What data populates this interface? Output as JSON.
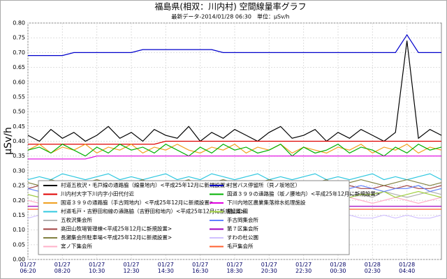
{
  "chart_data": {
    "type": "line",
    "title": "福島県(相双：川内村) 空間線量率グラフ",
    "subtitle": "最新データ-2014/01/28 06:30　単位：μSv/h",
    "y_label": "μSv/h",
    "categories": [
      "01/27\n06:20",
      null,
      null,
      "01/27\n08:20",
      null,
      null,
      "01/27\n10:30",
      null,
      null,
      "01/27\n12:30",
      null,
      null,
      "01/27\n14:30",
      null,
      null,
      "01/27\n16:30",
      null,
      null,
      "01/27\n18:30",
      null,
      null,
      "01/27\n20:30",
      null,
      null,
      "01/27\n22:30",
      null,
      null,
      "01/28\n00:30",
      null,
      null,
      "01/28\n02:30",
      null,
      null,
      "01/28\n04:40",
      null,
      null,
      null
    ],
    "ylim": [
      0,
      0.8
    ],
    "yticks": [
      {
        "value": 0,
        "label": "0.00"
      },
      0.05,
      {
        "value": 0.1,
        "label": "0.10"
      },
      0.15,
      {
        "value": 0.2,
        "label": "0.20"
      },
      0.25,
      {
        "value": 0.3,
        "label": "0.30"
      },
      0.35,
      {
        "value": 0.4,
        "label": "0.40"
      },
      0.45,
      {
        "value": 0.5,
        "label": "0.50"
      },
      0.55,
      {
        "value": 0.6,
        "label": "0.60"
      },
      0.65,
      {
        "value": 0.7,
        "label": "0.70"
      },
      0.75,
      {
        "value": 0.8,
        "label": "0.80"
      }
    ],
    "grid": true,
    "legend": "lower left",
    "series": [
      {
        "name": "村道五枚沢・毛戸線の通路脇（線量地内）<平成25年12月に新規設置>",
        "color": "#000000",
        "values": [
          0.42,
          0.4,
          0.44,
          0.41,
          0.43,
          0.4,
          0.42,
          0.45,
          0.41,
          0.43,
          0.4,
          0.44,
          0.42,
          0.41,
          0.45,
          0.4,
          0.43,
          0.41,
          0.44,
          0.42,
          0.4,
          0.43,
          0.45,
          0.41,
          0.42,
          0.44,
          0.4,
          0.43,
          0.41,
          0.44,
          0.42,
          0.4,
          0.43,
          0.74,
          0.41,
          0.44,
          0.42
        ]
      },
      {
        "name": "川内村大字下川内字小田代付近",
        "color": "#e00000",
        "values": [
          0.39,
          0.39,
          0.39,
          0.39,
          0.39,
          0.39,
          0.39,
          0.39,
          0.39,
          0.39,
          0.39,
          0.39,
          0.4,
          0.4,
          0.4,
          0.4,
          0.4,
          0.4,
          0.4,
          0.4,
          0.4,
          0.4,
          0.4,
          0.4,
          0.4,
          0.4,
          0.4,
          0.4,
          0.4,
          0.4,
          0.4,
          0.4,
          0.4,
          0.4,
          0.4,
          0.4,
          0.4
        ]
      },
      {
        "name": "国道３９９の通路脇（手古岡地内）<平成25年12月に新規設置>",
        "color": "#f0a020",
        "values": [
          0.37,
          0.39,
          0.36,
          0.38,
          0.37,
          0.39,
          0.36,
          0.38,
          0.37,
          0.39,
          0.36,
          0.38,
          0.37,
          0.39,
          0.37,
          0.36,
          0.38,
          0.37,
          0.39,
          0.36,
          0.38,
          0.37,
          0.39,
          0.36,
          0.38,
          0.37,
          0.36,
          0.38,
          0.37,
          0.39,
          0.36,
          0.38,
          0.37,
          0.39,
          0.36,
          0.38,
          0.37
        ]
      },
      {
        "name": "村道毛戸・吉野田和線の通路脇（吉野田和地内）<平成25年12月に新規設置>",
        "color": "#30c8e0",
        "values": [
          0.27,
          0.28,
          0.27,
          0.29,
          0.28,
          0.27,
          0.28,
          0.29,
          0.27,
          0.28,
          0.27,
          0.28,
          0.29,
          0.27,
          0.28,
          0.27,
          0.29,
          0.28,
          0.27,
          0.28,
          0.29,
          0.27,
          0.28,
          0.27,
          0.28,
          0.29,
          0.27,
          0.28,
          0.27,
          0.28,
          0.29,
          0.27,
          0.28,
          0.27,
          0.28,
          0.29,
          0.27
        ]
      },
      {
        "name": "五枚沢集会所",
        "color": "#b0b0b0",
        "values": [
          0.22,
          0.21,
          0.23,
          0.22,
          0.21,
          0.22,
          0.23,
          0.21,
          0.22,
          0.22,
          0.21,
          0.23,
          0.22,
          0.21,
          0.22,
          0.23,
          0.22,
          0.21,
          0.22,
          0.23,
          0.21,
          0.22,
          0.22,
          0.23,
          0.21,
          0.22,
          0.21,
          0.23,
          0.22,
          0.22,
          0.21,
          0.23,
          0.22,
          0.21,
          0.22,
          0.23,
          0.22
        ]
      },
      {
        "name": "高田山牧場管理棟<平成25年12月に新規設置>",
        "color": "#a04040",
        "values": [
          0.24,
          0.25,
          0.24,
          0.25,
          0.24,
          0.24,
          0.25,
          0.24,
          0.25,
          0.24,
          0.24,
          0.25,
          0.24,
          0.25,
          0.24,
          0.24,
          0.25,
          0.24,
          0.25,
          0.24,
          0.24,
          0.25,
          0.24,
          0.25,
          0.24,
          0.24,
          0.25,
          0.24,
          0.25,
          0.24,
          0.24,
          0.25,
          0.24,
          0.25,
          0.24,
          0.24,
          0.25
        ]
      },
      {
        "name": "長瀬集会所駐車場<平成25年12月に新規設置>",
        "color": "#808040",
        "values": [
          0.26,
          0.25,
          0.27,
          0.26,
          0.25,
          0.26,
          0.27,
          0.26,
          0.25,
          0.26,
          0.27,
          0.25,
          0.26,
          0.26,
          0.27,
          0.25,
          0.26,
          0.27,
          0.26,
          0.25,
          0.26,
          0.27,
          0.26,
          0.25,
          0.26,
          0.26,
          0.27,
          0.25,
          0.26,
          0.27,
          0.26,
          0.25,
          0.26,
          0.27,
          0.26,
          0.25,
          0.26
        ]
      },
      {
        "name": "宮ノ下集会所",
        "color": "#ffb0c8",
        "values": [
          0.2,
          0.19,
          0.21,
          0.2,
          0.19,
          0.2,
          0.21,
          0.19,
          0.2,
          0.2,
          0.21,
          0.19,
          0.2,
          0.21,
          0.2,
          0.19,
          0.2,
          0.21,
          0.19,
          0.2,
          0.2,
          0.21,
          0.19,
          0.2,
          0.21,
          0.2,
          0.19,
          0.2,
          0.21,
          0.2,
          0.19,
          0.2,
          0.21,
          0.2,
          0.19,
          0.2,
          0.21
        ]
      },
      {
        "name": "村営バス停留所（貝ノ坂地区）",
        "color": "#0000cc",
        "values": [
          0.69,
          0.69,
          0.69,
          0.69,
          0.7,
          0.7,
          0.7,
          0.7,
          0.7,
          0.7,
          0.71,
          0.71,
          0.71,
          0.71,
          0.71,
          0.71,
          0.71,
          0.7,
          0.7,
          0.7,
          0.7,
          0.7,
          0.7,
          0.7,
          0.7,
          0.7,
          0.7,
          0.7,
          0.7,
          0.7,
          0.7,
          0.7,
          0.7,
          0.76,
          0.7,
          0.7,
          0.7
        ]
      },
      {
        "name": "国道３９９の通路脇（坂ノ腰地内）<平成25年12月に新規設置>",
        "color": "#00b000",
        "values": [
          0.37,
          0.38,
          0.36,
          0.39,
          0.37,
          0.35,
          0.38,
          0.36,
          0.39,
          0.37,
          0.38,
          0.36,
          0.39,
          0.37,
          0.35,
          0.38,
          0.36,
          0.39,
          0.37,
          0.38,
          0.36,
          0.37,
          0.39,
          0.35,
          0.38,
          0.36,
          0.37,
          0.39,
          0.36,
          0.38,
          0.37,
          0.35,
          0.38,
          0.36,
          0.39,
          0.37,
          0.38
        ]
      },
      {
        "name": "下川内地区農業集落排水処理施設",
        "color": "#e000e0",
        "values": [
          0.34,
          0.34,
          0.34,
          0.34,
          0.34,
          0.34,
          0.35,
          0.35,
          0.35,
          0.35,
          0.35,
          0.35,
          0.35,
          0.35,
          0.35,
          0.35,
          0.35,
          0.35,
          0.35,
          0.35,
          0.35,
          0.35,
          0.35,
          0.35,
          0.35,
          0.35,
          0.35,
          0.35,
          0.35,
          0.35,
          0.35,
          0.35,
          0.35,
          0.35,
          0.35,
          0.35,
          0.35
        ]
      },
      {
        "name": "鍋山公園",
        "color": "#a0d040",
        "values": [
          0.22,
          0.21,
          0.23,
          0.22,
          0.21,
          0.23,
          0.22,
          0.21,
          0.22,
          0.23,
          0.21,
          0.22,
          0.23,
          0.22,
          0.21,
          0.22,
          0.23,
          0.21,
          0.22,
          0.22,
          0.23,
          0.21,
          0.22,
          0.23,
          0.22,
          0.21,
          0.22,
          0.23,
          0.21,
          0.22,
          0.22,
          0.23,
          0.21,
          0.22,
          0.23,
          0.22,
          0.21
        ]
      },
      {
        "name": "手古岡集会所",
        "color": "#6080ff",
        "values": [
          0.24,
          0.23,
          0.24,
          0.25,
          0.24,
          0.23,
          0.24,
          0.24,
          0.25,
          0.23,
          0.24,
          0.24,
          0.25,
          0.24,
          0.23,
          0.24,
          0.25,
          0.24,
          0.23,
          0.24,
          0.24,
          0.25,
          0.23,
          0.24,
          0.24,
          0.25,
          0.24,
          0.23,
          0.24,
          0.25,
          0.24,
          0.23,
          0.24,
          0.24,
          0.25,
          0.23,
          0.24
        ]
      },
      {
        "name": "第７区集会所",
        "color": "#a000c0",
        "values": [
          0.18,
          0.18,
          0.18,
          0.18,
          0.18,
          0.18,
          0.18,
          0.18,
          0.18,
          0.18,
          0.18,
          0.18,
          0.18,
          0.18,
          0.18,
          0.18,
          0.18,
          0.18,
          0.18,
          0.18,
          0.18,
          0.18,
          0.18,
          0.18,
          0.18,
          0.18,
          0.18,
          0.18,
          0.18,
          0.18,
          0.18,
          0.18,
          0.18,
          0.18,
          0.18,
          0.18,
          0.18
        ]
      },
      {
        "name": "すわの杜公園",
        "color": "#d0c0ff",
        "values": [
          0.14,
          0.15,
          0.14,
          0.15,
          0.14,
          0.14,
          0.15,
          0.14,
          0.15,
          0.14,
          0.14,
          0.15,
          0.14,
          0.15,
          0.14,
          0.14,
          0.15,
          0.14,
          0.15,
          0.14,
          0.14,
          0.15,
          0.14,
          0.15,
          0.14,
          0.14,
          0.15,
          0.14,
          0.15,
          0.14,
          0.14,
          0.15,
          0.14,
          0.15,
          0.14,
          0.14,
          0.15
        ]
      },
      {
        "name": "毛戸集会所",
        "color": "#ff6030",
        "values": [
          0.17,
          0.17,
          0.17,
          0.17,
          0.17,
          0.17,
          0.17,
          0.17,
          0.17,
          0.17,
          0.17,
          0.17,
          0.17,
          0.17,
          0.17,
          0.17,
          0.17,
          0.17,
          0.17,
          0.17,
          0.17,
          0.17,
          0.17,
          0.17,
          0.17,
          0.17,
          0.17,
          0.17,
          0.17,
          0.17,
          0.17,
          0.17,
          0.17,
          0.17,
          0.17,
          0.17,
          0.17
        ]
      }
    ]
  }
}
